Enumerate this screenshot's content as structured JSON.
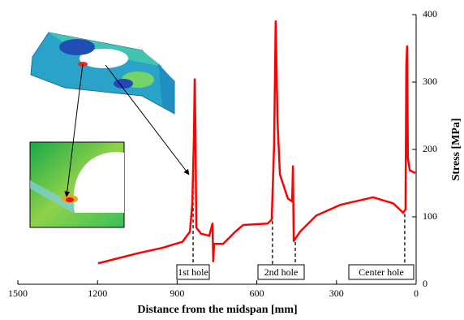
{
  "chart_data": {
    "type": "line",
    "xlabel": "Distance from the midspan [mm]",
    "ylabel": "Stress [MPa]",
    "x": [
      1198,
      1048,
      956,
      880,
      852,
      843,
      837,
      834,
      831,
      828,
      810,
      779,
      767,
      764,
      761,
      727,
      681,
      651,
      559,
      544,
      535,
      529,
      522,
      513,
      483,
      467,
      464,
      461,
      437,
      376,
      284,
      162,
      86,
      49,
      40,
      37,
      34,
      31,
      24,
      3
    ],
    "values": [
      31,
      46,
      54,
      63,
      78,
      120,
      217,
      304,
      229,
      84,
      75,
      72,
      90,
      34,
      60,
      60,
      78,
      88,
      90,
      96,
      205,
      390,
      241,
      163,
      127,
      123,
      175,
      64,
      78,
      102,
      118,
      129,
      120,
      106,
      111,
      325,
      353,
      187,
      169,
      165
    ],
    "color": "#ff0000",
    "xlim": [
      1500,
      0
    ],
    "xticks": [
      1500,
      1200,
      900,
      600,
      300,
      0
    ],
    "ylim": [
      0,
      400
    ],
    "yticks": [
      0,
      100,
      200,
      300,
      400
    ],
    "markers": [
      840,
      541,
      455,
      43
    ],
    "annotations": [
      "1st hole",
      "2nd hole",
      "Center hole"
    ]
  }
}
